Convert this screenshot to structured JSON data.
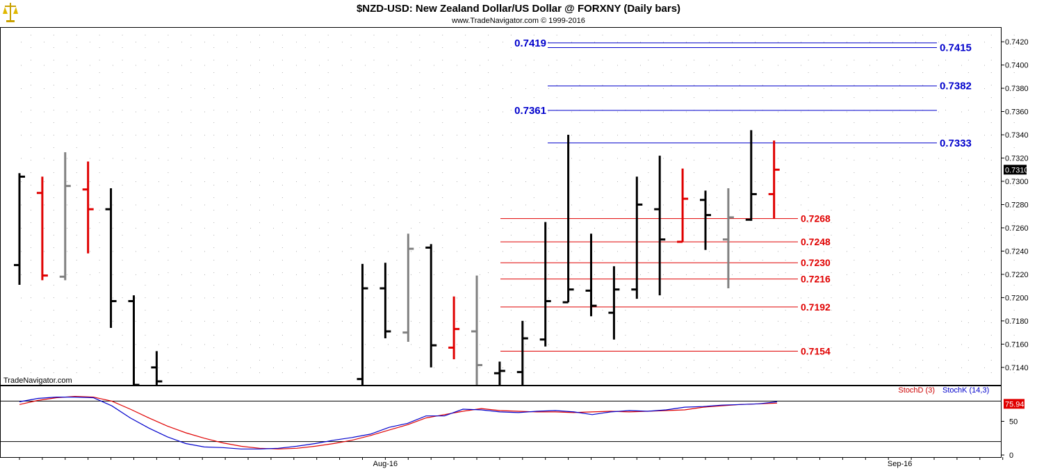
{
  "header": {
    "title": "$NZD-USD:  New Zealand Dollar/US Dollar @ FORXNY  (Daily bars)",
    "subtitle": "www.TradeNavigator.com © 1999-2016",
    "watermark": "TradeNavigator.com",
    "logo_icon": "scales-of-justice-icon"
  },
  "colors": {
    "background": "#ffffff",
    "bar_up": "#000000",
    "bar_down": "#e00000",
    "bar_neutral": "#808080",
    "resistance": "#0000cc",
    "support": "#e00000",
    "stoch_d": "#cc0000",
    "stoch_k": "#0000cc",
    "grid": "#b0b0b0"
  },
  "chart_data": [
    {
      "type": "ohlc",
      "name": "price",
      "ylim": [
        0.7125,
        0.7432
      ],
      "yticks": [
        "0.7140",
        "0.7160",
        "0.7180",
        "0.7200",
        "0.7220",
        "0.7240",
        "0.7260",
        "0.7280",
        "0.7300",
        "0.7320",
        "0.7340",
        "0.7360",
        "0.7380",
        "0.7400",
        "0.7420"
      ],
      "last_price_label": "0.7310",
      "x_labels": [
        {
          "label": "Aug-16",
          "index": 16
        },
        {
          "label": "Sep-16",
          "index": 38.5
        }
      ],
      "bars": [
        {
          "o": 0.7228,
          "h": 0.7307,
          "l": 0.7211,
          "c": 0.7304,
          "color": "black"
        },
        {
          "o": 0.729,
          "h": 0.7304,
          "l": 0.7215,
          "c": 0.7219,
          "color": "red"
        },
        {
          "o": 0.7218,
          "h": 0.7325,
          "l": 0.7215,
          "c": 0.7296,
          "color": "gray"
        },
        {
          "o": 0.7293,
          "h": 0.7317,
          "l": 0.7238,
          "c": 0.7276,
          "color": "red"
        },
        {
          "o": 0.7276,
          "h": 0.7294,
          "l": 0.7174,
          "c": 0.7197,
          "color": "black"
        },
        {
          "o": 0.7197,
          "h": 0.7202,
          "l": 0.7125,
          "c": 0.7125,
          "color": "black"
        },
        {
          "o": 0.714,
          "h": 0.7154,
          "l": 0.7125,
          "c": 0.7128,
          "color": "black"
        },
        null,
        null,
        null,
        null,
        null,
        null,
        null,
        null,
        {
          "o": 0.713,
          "h": 0.7229,
          "l": 0.7125,
          "c": 0.7208,
          "color": "black"
        },
        {
          "o": 0.7208,
          "h": 0.723,
          "l": 0.7165,
          "c": 0.7171,
          "color": "black"
        },
        {
          "o": 0.717,
          "h": 0.7255,
          "l": 0.7162,
          "c": 0.7242,
          "color": "gray"
        },
        {
          "o": 0.7243,
          "h": 0.7246,
          "l": 0.714,
          "c": 0.7159,
          "color": "black"
        },
        {
          "o": 0.7157,
          "h": 0.7201,
          "l": 0.7147,
          "c": 0.7173,
          "color": "red"
        },
        {
          "o": 0.7171,
          "h": 0.7219,
          "l": 0.7125,
          "c": 0.7142,
          "color": "gray"
        },
        {
          "o": 0.7135,
          "h": 0.7145,
          "l": 0.7125,
          "c": 0.7137,
          "color": "black"
        },
        {
          "o": 0.7136,
          "h": 0.718,
          "l": 0.7125,
          "c": 0.7165,
          "color": "black"
        },
        {
          "o": 0.7164,
          "h": 0.7265,
          "l": 0.7158,
          "c": 0.7197,
          "color": "black"
        },
        {
          "o": 0.7196,
          "h": 0.734,
          "l": 0.7196,
          "c": 0.7207,
          "color": "black"
        },
        {
          "o": 0.7206,
          "h": 0.7255,
          "l": 0.7184,
          "c": 0.7193,
          "color": "black"
        },
        {
          "o": 0.7187,
          "h": 0.7227,
          "l": 0.7164,
          "c": 0.7207,
          "color": "black"
        },
        {
          "o": 0.7207,
          "h": 0.7304,
          "l": 0.7199,
          "c": 0.728,
          "color": "black"
        },
        {
          "o": 0.7276,
          "h": 0.7322,
          "l": 0.7202,
          "c": 0.725,
          "color": "black"
        },
        {
          "o": 0.7248,
          "h": 0.7311,
          "l": 0.7248,
          "c": 0.7285,
          "color": "red"
        },
        {
          "o": 0.7284,
          "h": 0.7292,
          "l": 0.7241,
          "c": 0.7271,
          "color": "black"
        },
        {
          "o": 0.725,
          "h": 0.7294,
          "l": 0.7208,
          "c": 0.7269,
          "color": "gray"
        },
        {
          "o": 0.7267,
          "h": 0.7344,
          "l": 0.7266,
          "c": 0.7289,
          "color": "black"
        },
        {
          "o": 0.7289,
          "h": 0.7335,
          "l": 0.7268,
          "c": 0.731,
          "color": "red"
        }
      ],
      "levels": [
        {
          "value": 0.7419,
          "label": "0.7419",
          "side": "left",
          "color": "blue"
        },
        {
          "value": 0.7415,
          "label": "0.7415",
          "side": "right",
          "color": "blue"
        },
        {
          "value": 0.7382,
          "label": "0.7382",
          "side": "right",
          "color": "blue"
        },
        {
          "value": 0.7361,
          "label": "0.7361",
          "side": "left",
          "color": "blue"
        },
        {
          "value": 0.7333,
          "label": "0.7333",
          "side": "right",
          "color": "blue"
        },
        {
          "value": 0.7268,
          "label": "0.7268",
          "side": "right",
          "color": "red"
        },
        {
          "value": 0.7248,
          "label": "0.7248",
          "side": "right",
          "color": "red"
        },
        {
          "value": 0.723,
          "label": "0.7230",
          "side": "right",
          "color": "red"
        },
        {
          "value": 0.7216,
          "label": "0.7216",
          "side": "right",
          "color": "red"
        },
        {
          "value": 0.7192,
          "label": "0.7192",
          "side": "right",
          "color": "red"
        },
        {
          "value": 0.7154,
          "label": "0.7154",
          "side": "right",
          "color": "red"
        }
      ]
    },
    {
      "type": "line",
      "name": "stochastic",
      "ylim": [
        0,
        100
      ],
      "yticks": [
        "50",
        "0"
      ],
      "reference_lines": [
        20,
        80
      ],
      "last_value_label": "75.94",
      "legend": [
        "StochD (3)",
        "StochK (14,3)"
      ],
      "series": [
        {
          "name": "StochD (3)",
          "color": "red",
          "values": [
            75,
            81,
            85,
            87,
            86,
            80,
            68,
            55,
            43,
            33,
            25,
            18,
            13,
            10,
            9,
            10,
            13,
            17,
            22,
            29,
            37,
            45,
            55,
            60,
            65,
            69,
            66,
            65,
            64,
            64,
            63,
            64,
            65,
            64,
            65,
            66,
            67,
            71,
            73,
            75,
            76,
            77
          ]
        },
        {
          "name": "StochK (14,3)",
          "color": "blue",
          "values": [
            79,
            84,
            86,
            86,
            85,
            73,
            55,
            40,
            27,
            17,
            12,
            11,
            9,
            9,
            10,
            13,
            17,
            22,
            26,
            31,
            41,
            47,
            58,
            58,
            68,
            67,
            64,
            63,
            65,
            66,
            64,
            60,
            64,
            66,
            65,
            67,
            71,
            72,
            74,
            75,
            76,
            79
          ]
        }
      ]
    }
  ]
}
